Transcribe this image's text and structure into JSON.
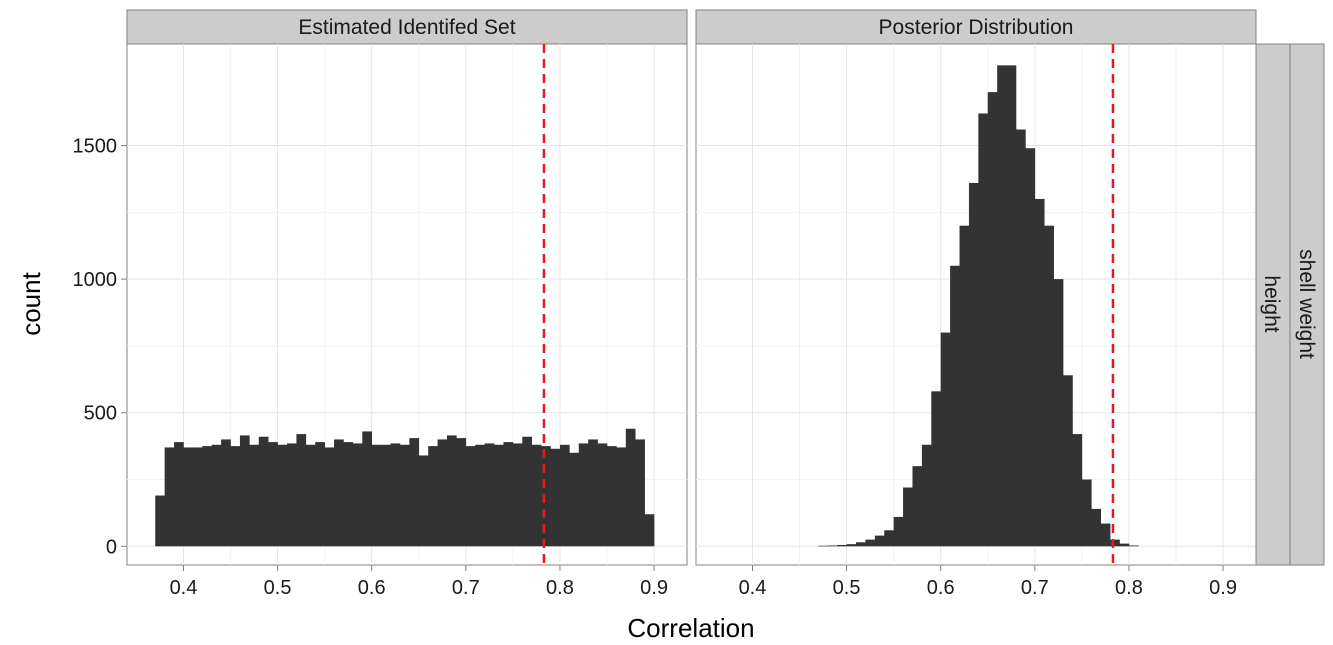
{
  "chart_data": {
    "type": "bar",
    "xlabel": "Correlation",
    "ylabel": "count",
    "xlim": [
      0.34,
      0.935
    ],
    "ylim": [
      -70,
      1880
    ],
    "x_ticks": [
      "0.4",
      "0.5",
      "0.6",
      "0.7",
      "0.8",
      "0.9"
    ],
    "y_ticks": [
      "0",
      "500",
      "1000",
      "1500"
    ],
    "grid": true,
    "row_strips": [
      "height",
      "shell weight"
    ],
    "reference_line": {
      "x": 0.783,
      "color": "#e41a1c",
      "style": "dashed"
    },
    "bin_width": 0.01,
    "panels": [
      {
        "title": "Estimated Identifed Set",
        "bin_starts": [
          0.37,
          0.38,
          0.39,
          0.4,
          0.41,
          0.42,
          0.43,
          0.44,
          0.45,
          0.46,
          0.47,
          0.48,
          0.49,
          0.5,
          0.51,
          0.52,
          0.53,
          0.54,
          0.55,
          0.56,
          0.57,
          0.58,
          0.59,
          0.6,
          0.61,
          0.62,
          0.63,
          0.64,
          0.65,
          0.66,
          0.67,
          0.68,
          0.69,
          0.7,
          0.71,
          0.72,
          0.73,
          0.74,
          0.75,
          0.76,
          0.77,
          0.78,
          0.79,
          0.8,
          0.81,
          0.82,
          0.83,
          0.84,
          0.85,
          0.86,
          0.87,
          0.88,
          0.89
        ],
        "values": [
          190,
          370,
          390,
          370,
          370,
          375,
          380,
          400,
          375,
          415,
          380,
          410,
          390,
          380,
          385,
          420,
          380,
          390,
          370,
          400,
          390,
          385,
          430,
          380,
          380,
          385,
          380,
          405,
          340,
          375,
          400,
          415,
          405,
          375,
          380,
          385,
          380,
          390,
          385,
          410,
          380,
          375,
          365,
          380,
          350,
          385,
          400,
          385,
          375,
          370,
          440,
          400,
          120
        ]
      },
      {
        "title": "Posterior Distribution",
        "bin_starts": [
          0.47,
          0.48,
          0.49,
          0.5,
          0.51,
          0.52,
          0.53,
          0.54,
          0.55,
          0.56,
          0.57,
          0.58,
          0.59,
          0.6,
          0.61,
          0.62,
          0.63,
          0.64,
          0.65,
          0.66,
          0.67,
          0.68,
          0.69,
          0.7,
          0.71,
          0.72,
          0.73,
          0.74,
          0.75,
          0.76,
          0.77,
          0.78,
          0.79,
          0.8
        ],
        "values": [
          2,
          3,
          5,
          8,
          15,
          25,
          40,
          60,
          110,
          220,
          300,
          380,
          580,
          800,
          1050,
          1200,
          1360,
          1620,
          1700,
          1800,
          1800,
          1560,
          1490,
          1300,
          1200,
          1000,
          640,
          420,
          250,
          140,
          85,
          25,
          10,
          3
        ]
      }
    ]
  }
}
